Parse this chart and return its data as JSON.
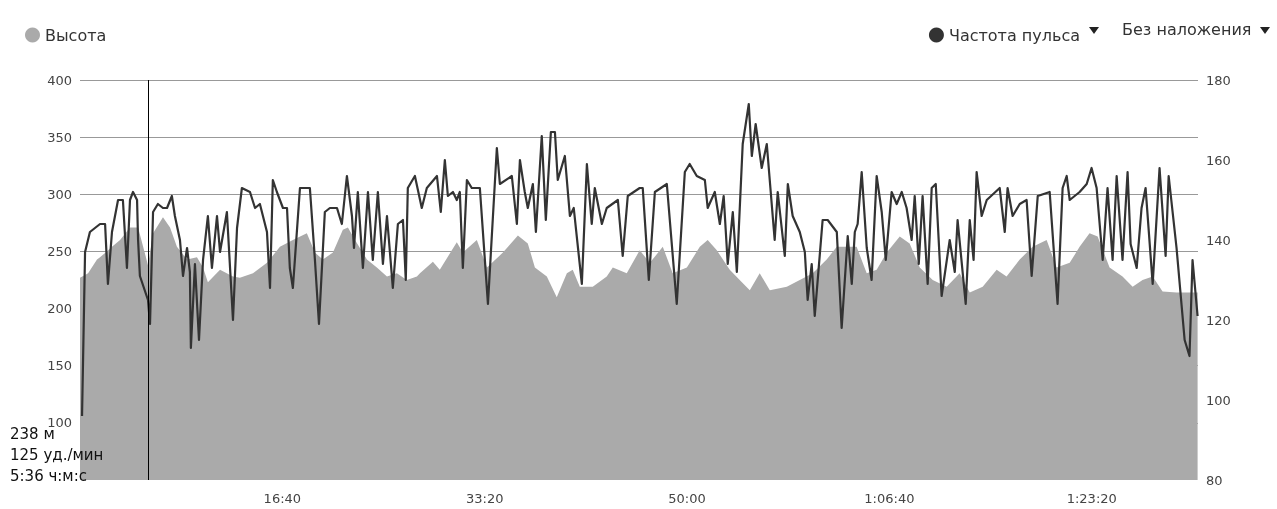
{
  "chart_data": {
    "type": "area",
    "legend": "top",
    "grid": "y",
    "xlim": [
      0,
      5525
    ],
    "xticks": [
      {
        "value": 1000,
        "label": "16:40"
      },
      {
        "value": 2000,
        "label": "33:20"
      },
      {
        "value": 3000,
        "label": "50:00"
      },
      {
        "value": 4000,
        "label": "1:06:40"
      },
      {
        "value": 5000,
        "label": "1:23:20"
      }
    ],
    "ylim": [
      50,
      400
    ],
    "yticks": [
      100,
      150,
      200,
      250,
      300,
      350,
      400
    ],
    "y2lim": [
      80,
      180
    ],
    "y2ticks": [
      80,
      100,
      120,
      140,
      160,
      180
    ],
    "ref_lines": [
      {
        "axis": "x",
        "value": 336,
        "color": "#000000"
      }
    ],
    "annotations": [
      "238 м",
      "125 уд./мин",
      "5:36 ч:м:с",
      "Без наложения"
    ],
    "series": [
      {
        "name": "Высота",
        "type": "area",
        "color": "#aaaaaa",
        "x": [
          0,
          40,
          84,
          99,
          133,
          158,
          198,
          247,
          287,
          336,
          361,
          410,
          445,
          479,
          529,
          578,
          608,
          632,
          692,
          756,
          790,
          855,
          924,
          988,
          1052,
          1121,
          1161,
          1200,
          1250,
          1299,
          1324,
          1359,
          1418,
          1467,
          1517,
          1566,
          1615,
          1665,
          1680,
          1744,
          1778,
          1862,
          1892,
          1961,
          2011,
          2090,
          2164,
          2213,
          2248,
          2307,
          2356,
          2406,
          2435,
          2470,
          2534,
          2603,
          2633,
          2702,
          2766,
          2816,
          2880,
          2929,
          2999,
          3063,
          3102,
          3147,
          3211,
          3260,
          3310,
          3359,
          3409,
          3493,
          3557,
          3621,
          3690,
          3740,
          3804,
          3838,
          3888,
          3937,
          3987,
          4051,
          4100,
          4150,
          4214,
          4283,
          4347,
          4397,
          4461,
          4530,
          4579,
          4644,
          4708,
          4777,
          4826,
          4891,
          4940,
          4989,
          5029,
          5088,
          5152,
          5202,
          5251,
          5301,
          5350,
          5419,
          5469,
          5523
        ],
        "values": [
          227,
          231,
          243,
          245,
          250,
          254,
          260,
          271,
          271,
          238,
          266,
          280,
          271,
          254,
          243,
          245,
          236,
          223,
          234,
          228,
          227,
          231,
          240,
          254,
          260,
          266,
          249,
          243,
          249,
          269,
          271,
          260,
          243,
          236,
          228,
          231,
          225,
          228,
          231,
          241,
          234,
          258,
          249,
          260,
          236,
          249,
          264,
          257,
          236,
          228,
          210,
          231,
          234,
          219,
          219,
          228,
          236,
          231,
          251,
          240,
          254,
          231,
          236,
          254,
          260,
          251,
          234,
          225,
          216,
          231,
          216,
          219,
          225,
          231,
          243,
          254,
          254,
          254,
          231,
          234,
          249,
          263,
          257,
          236,
          225,
          219,
          231,
          214,
          219,
          234,
          228,
          243,
          254,
          260,
          236,
          240,
          254,
          266,
          263,
          236,
          228,
          219,
          225,
          228,
          215,
          214,
          214,
          214
        ]
      },
      {
        "name": "Частота пульса",
        "type": "line",
        "axis": "y2",
        "color": "#333333",
        "x": [
          10,
          25,
          49,
          99,
          124,
          138,
          158,
          188,
          212,
          232,
          247,
          262,
          282,
          287,
          296,
          336,
          346,
          361,
          385,
          410,
          430,
          454,
          469,
          494,
          509,
          529,
          543,
          548,
          568,
          588,
          608,
          632,
          652,
          677,
          692,
          726,
          756,
          776,
          800,
          840,
          865,
          889,
          904,
          924,
          939,
          953,
          973,
          1003,
          1023,
          1037,
          1052,
          1087,
          1136,
          1161,
          1181,
          1210,
          1235,
          1270,
          1294,
          1319,
          1344,
          1354,
          1373,
          1398,
          1423,
          1447,
          1472,
          1497,
          1517,
          1546,
          1571,
          1596,
          1610,
          1620,
          1655,
          1689,
          1714,
          1764,
          1783,
          1803,
          1818,
          1843,
          1862,
          1877,
          1892,
          1912,
          1936,
          1976,
          2016,
          2060,
          2075,
          2134,
          2159,
          2174,
          2198,
          2213,
          2238,
          2253,
          2282,
          2302,
          2327,
          2347,
          2361,
          2396,
          2421,
          2440,
          2480,
          2505,
          2529,
          2544,
          2579,
          2603,
          2658,
          2682,
          2707,
          2766,
          2781,
          2811,
          2841,
          2900,
          2949,
          2989,
          3013,
          3048,
          3088,
          3102,
          3137,
          3162,
          3181,
          3201,
          3226,
          3246,
          3275,
          3305,
          3320,
          3339,
          3369,
          3394,
          3433,
          3448,
          3483,
          3498,
          3522,
          3557,
          3582,
          3596,
          3616,
          3631,
          3670,
          3695,
          3740,
          3764,
          3794,
          3814,
          3829,
          3843,
          3863,
          3888,
          3912,
          3937,
          3962,
          3982,
          4011,
          4036,
          4061,
          4085,
          4110,
          4125,
          4145,
          4164,
          4189,
          4209,
          4229,
          4258,
          4298,
          4323,
          4337,
          4377,
          4397,
          4416,
          4431,
          4456,
          4481,
          4545,
          4570,
          4584,
          4609,
          4644,
          4678,
          4703,
          4733,
          4792,
          4831,
          4856,
          4876,
          4891,
          4940,
          4975,
          4999,
          5024,
          5054,
          5078,
          5103,
          5123,
          5152,
          5177,
          5192,
          5222,
          5246,
          5266,
          5301,
          5335,
          5365,
          5380,
          5419,
          5459,
          5483,
          5498,
          5523
        ],
        "values": [
          96,
          137,
          142,
          144,
          144,
          129,
          142,
          150,
          150,
          133,
          150,
          152,
          150,
          140,
          131,
          125,
          119,
          147,
          149,
          148,
          148,
          151,
          146,
          140,
          131,
          138,
          132,
          113,
          134,
          115,
          135,
          146,
          133,
          146,
          137,
          147,
          120,
          143,
          153,
          152,
          148,
          149,
          146,
          142,
          128,
          155,
          152,
          148,
          148,
          133,
          128,
          153,
          153,
          135,
          119,
          147,
          148,
          148,
          144,
          156,
          146,
          138,
          152,
          133,
          152,
          135,
          152,
          134,
          146,
          128,
          144,
          145,
          130,
          153,
          156,
          148,
          153,
          156,
          147,
          160,
          151,
          152,
          150,
          152,
          133,
          155,
          153,
          153,
          124,
          163,
          154,
          156,
          144,
          160,
          152,
          148,
          154,
          142,
          166,
          145,
          167,
          167,
          155,
          161,
          146,
          148,
          129,
          159,
          144,
          153,
          144,
          148,
          150,
          136,
          151,
          153,
          153,
          130,
          152,
          154,
          124,
          157,
          159,
          156,
          155,
          148,
          152,
          144,
          151,
          134,
          147,
          132,
          164,
          174,
          161,
          169,
          158,
          164,
          140,
          152,
          136,
          154,
          146,
          142,
          137,
          125,
          134,
          121,
          145,
          145,
          142,
          118,
          141,
          129,
          142,
          144,
          157,
          138,
          130,
          156,
          147,
          135,
          152,
          149,
          152,
          148,
          140,
          151,
          134,
          151,
          129,
          153,
          154,
          126,
          140,
          132,
          145,
          124,
          145,
          135,
          157,
          146,
          150,
          153,
          142,
          153,
          146,
          149,
          150,
          131,
          151,
          152,
          124,
          153,
          156,
          150,
          152,
          154,
          158,
          153,
          135,
          153,
          135,
          156,
          135,
          157,
          139,
          133,
          148,
          153,
          129,
          158,
          136,
          156,
          138,
          115,
          111,
          135,
          121
        ]
      }
    ]
  }
}
